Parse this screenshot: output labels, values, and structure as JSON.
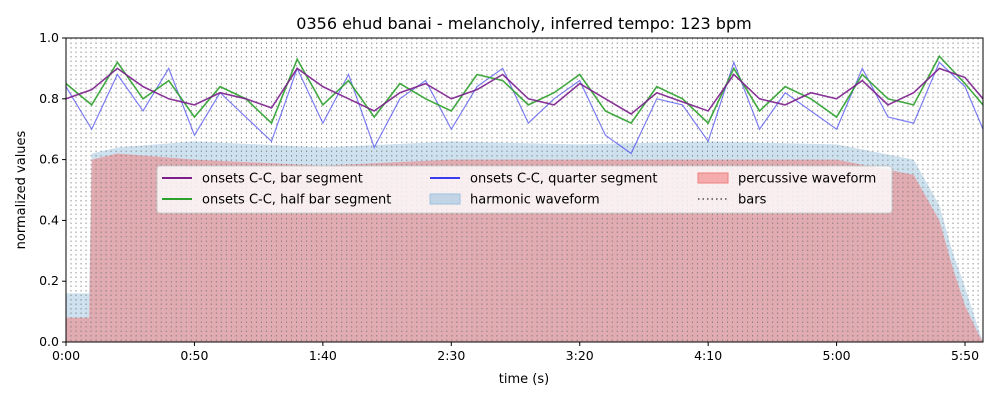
{
  "chart_data": {
    "type": "line",
    "title": "0356 ehud banai - melancholy, inferred tempo: 123 bpm",
    "xlabel": "time (s)",
    "ylabel": "normalized values",
    "xlim": [
      0,
      357
    ],
    "ylim": [
      0,
      1.0
    ],
    "x_ticks": [
      0,
      50,
      100,
      150,
      200,
      250,
      300,
      350
    ],
    "x_tick_labels": [
      "0:00",
      "0:50",
      "1:40",
      "2:30",
      "3:20",
      "4:10",
      "5:00",
      "5:50"
    ],
    "y_ticks": [
      0.0,
      0.2,
      0.4,
      0.6,
      0.8,
      1.0
    ],
    "y_tick_labels": [
      "0.0",
      "0.2",
      "0.4",
      "0.6",
      "0.8",
      "1.0"
    ],
    "grid": "bar lines (dotted vertical)",
    "legend_position": "center, three columns",
    "bar_period_s": 1.951,
    "series": [
      {
        "name": "onsets C-C, bar segment",
        "kind": "line",
        "color": "#7b1f8c",
        "x": [
          0,
          10,
          20,
          30,
          40,
          50,
          60,
          70,
          80,
          90,
          100,
          110,
          120,
          130,
          140,
          150,
          160,
          170,
          180,
          190,
          200,
          210,
          220,
          230,
          240,
          250,
          260,
          270,
          280,
          290,
          300,
          310,
          320,
          330,
          340,
          350,
          357
        ],
        "values": [
          0.8,
          0.83,
          0.9,
          0.84,
          0.8,
          0.78,
          0.82,
          0.8,
          0.77,
          0.9,
          0.84,
          0.8,
          0.76,
          0.82,
          0.85,
          0.8,
          0.83,
          0.88,
          0.8,
          0.78,
          0.85,
          0.8,
          0.75,
          0.82,
          0.79,
          0.76,
          0.88,
          0.8,
          0.78,
          0.82,
          0.8,
          0.86,
          0.78,
          0.82,
          0.9,
          0.87,
          0.8
        ]
      },
      {
        "name": "onsets C-C, half bar segment",
        "kind": "line",
        "color": "#2ca02c",
        "x": [
          0,
          10,
          20,
          30,
          40,
          50,
          60,
          70,
          80,
          90,
          100,
          110,
          120,
          130,
          140,
          150,
          160,
          170,
          180,
          190,
          200,
          210,
          220,
          230,
          240,
          250,
          260,
          270,
          280,
          290,
          300,
          310,
          320,
          330,
          340,
          350,
          357
        ],
        "values": [
          0.85,
          0.78,
          0.92,
          0.8,
          0.86,
          0.74,
          0.84,
          0.8,
          0.72,
          0.93,
          0.78,
          0.86,
          0.74,
          0.85,
          0.8,
          0.76,
          0.88,
          0.86,
          0.78,
          0.82,
          0.88,
          0.76,
          0.72,
          0.84,
          0.8,
          0.72,
          0.9,
          0.76,
          0.84,
          0.8,
          0.74,
          0.88,
          0.8,
          0.78,
          0.94,
          0.85,
          0.78
        ]
      },
      {
        "name": "onsets C-C, quarter segment",
        "kind": "line",
        "color": "#3b3bf0",
        "x": [
          0,
          10,
          20,
          30,
          40,
          50,
          60,
          70,
          80,
          90,
          100,
          110,
          120,
          130,
          140,
          150,
          160,
          170,
          180,
          190,
          200,
          210,
          220,
          230,
          240,
          250,
          260,
          270,
          280,
          290,
          300,
          310,
          320,
          330,
          340,
          350,
          357
        ],
        "values": [
          0.84,
          0.7,
          0.88,
          0.76,
          0.9,
          0.68,
          0.82,
          0.74,
          0.66,
          0.9,
          0.72,
          0.88,
          0.64,
          0.8,
          0.86,
          0.7,
          0.84,
          0.9,
          0.72,
          0.8,
          0.86,
          0.68,
          0.62,
          0.8,
          0.78,
          0.66,
          0.92,
          0.7,
          0.82,
          0.76,
          0.7,
          0.9,
          0.74,
          0.72,
          0.92,
          0.84,
          0.7
        ]
      },
      {
        "name": "harmonic waveform",
        "kind": "area",
        "color": "#9ec3e0",
        "x": [
          0,
          5,
          9,
          10,
          20,
          50,
          100,
          150,
          200,
          250,
          300,
          330,
          340,
          345,
          350,
          355,
          357
        ],
        "values": [
          0.16,
          0.16,
          0.16,
          0.62,
          0.64,
          0.66,
          0.64,
          0.66,
          0.65,
          0.66,
          0.65,
          0.6,
          0.45,
          0.3,
          0.18,
          0.05,
          0.0
        ]
      },
      {
        "name": "percussive waveform",
        "kind": "area",
        "color": "#f08080",
        "x": [
          0,
          5,
          9,
          10,
          20,
          50,
          100,
          150,
          200,
          250,
          300,
          330,
          340,
          345,
          350,
          355,
          357
        ],
        "values": [
          0.08,
          0.08,
          0.08,
          0.6,
          0.62,
          0.6,
          0.58,
          0.6,
          0.6,
          0.6,
          0.6,
          0.55,
          0.4,
          0.25,
          0.12,
          0.03,
          0.0
        ]
      },
      {
        "name": "bars",
        "kind": "vlines",
        "color": "#777777"
      }
    ]
  }
}
